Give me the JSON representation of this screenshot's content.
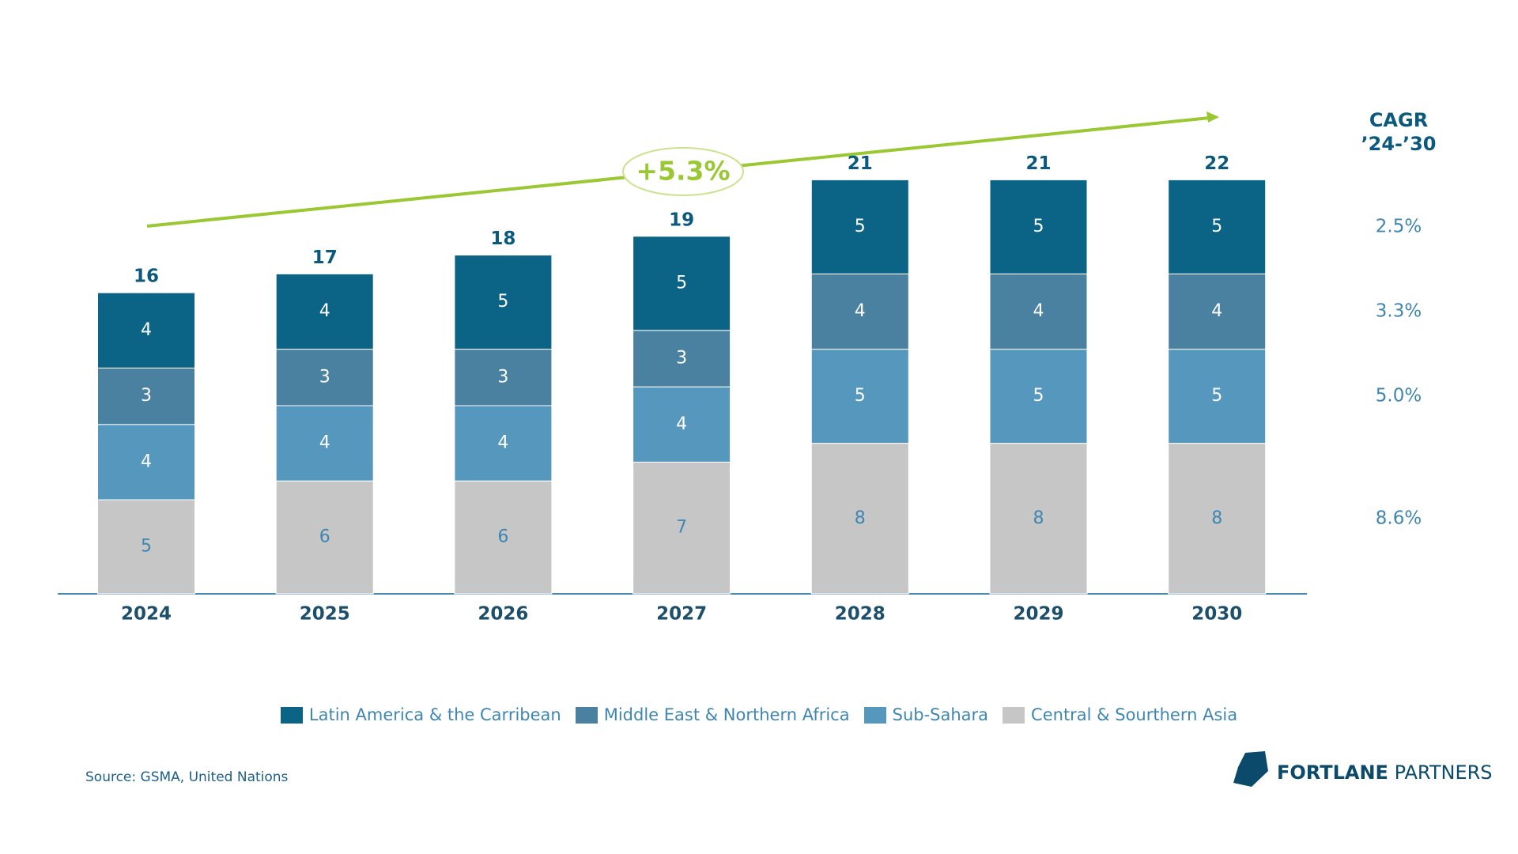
{
  "chart_data": {
    "type": "stacked_bar",
    "categories": [
      "2024",
      "2025",
      "2026",
      "2027",
      "2028",
      "2029",
      "2030"
    ],
    "series": [
      {
        "name": "Latin America & the Carribean",
        "color": "#0b6386",
        "values": [
          4,
          4,
          5,
          5,
          5,
          5,
          5
        ],
        "cagr": 2.5,
        "cagr_label": "2.5%"
      },
      {
        "name": "Middle East & Northern Africa",
        "color": "#4a80a0",
        "values": [
          3,
          3,
          3,
          3,
          4,
          4,
          4
        ],
        "cagr": 3.3,
        "cagr_label": "3.3%"
      },
      {
        "name": "Sub-Sahara",
        "color": "#5597bd",
        "values": [
          4,
          4,
          4,
          4,
          5,
          5,
          5
        ],
        "cagr": 5.0,
        "cagr_label": "5.0%"
      },
      {
        "name": "Central & Sourthern Asia",
        "color": "#c6c6c6",
        "values": [
          5,
          6,
          6,
          7,
          8,
          8,
          8
        ],
        "cagr": 8.6,
        "cagr_label": "8.6%"
      }
    ],
    "totals": [
      16,
      17,
      18,
      19,
      21,
      21,
      22
    ],
    "annotation": "+5.3%",
    "cagr_title": [
      "CAGR",
      "’24-’30"
    ],
    "legend": "bottom"
  },
  "source": "Source: GSMA, United Nations",
  "logo": {
    "bold": "FORTLANE",
    "light": "PARTNERS"
  }
}
